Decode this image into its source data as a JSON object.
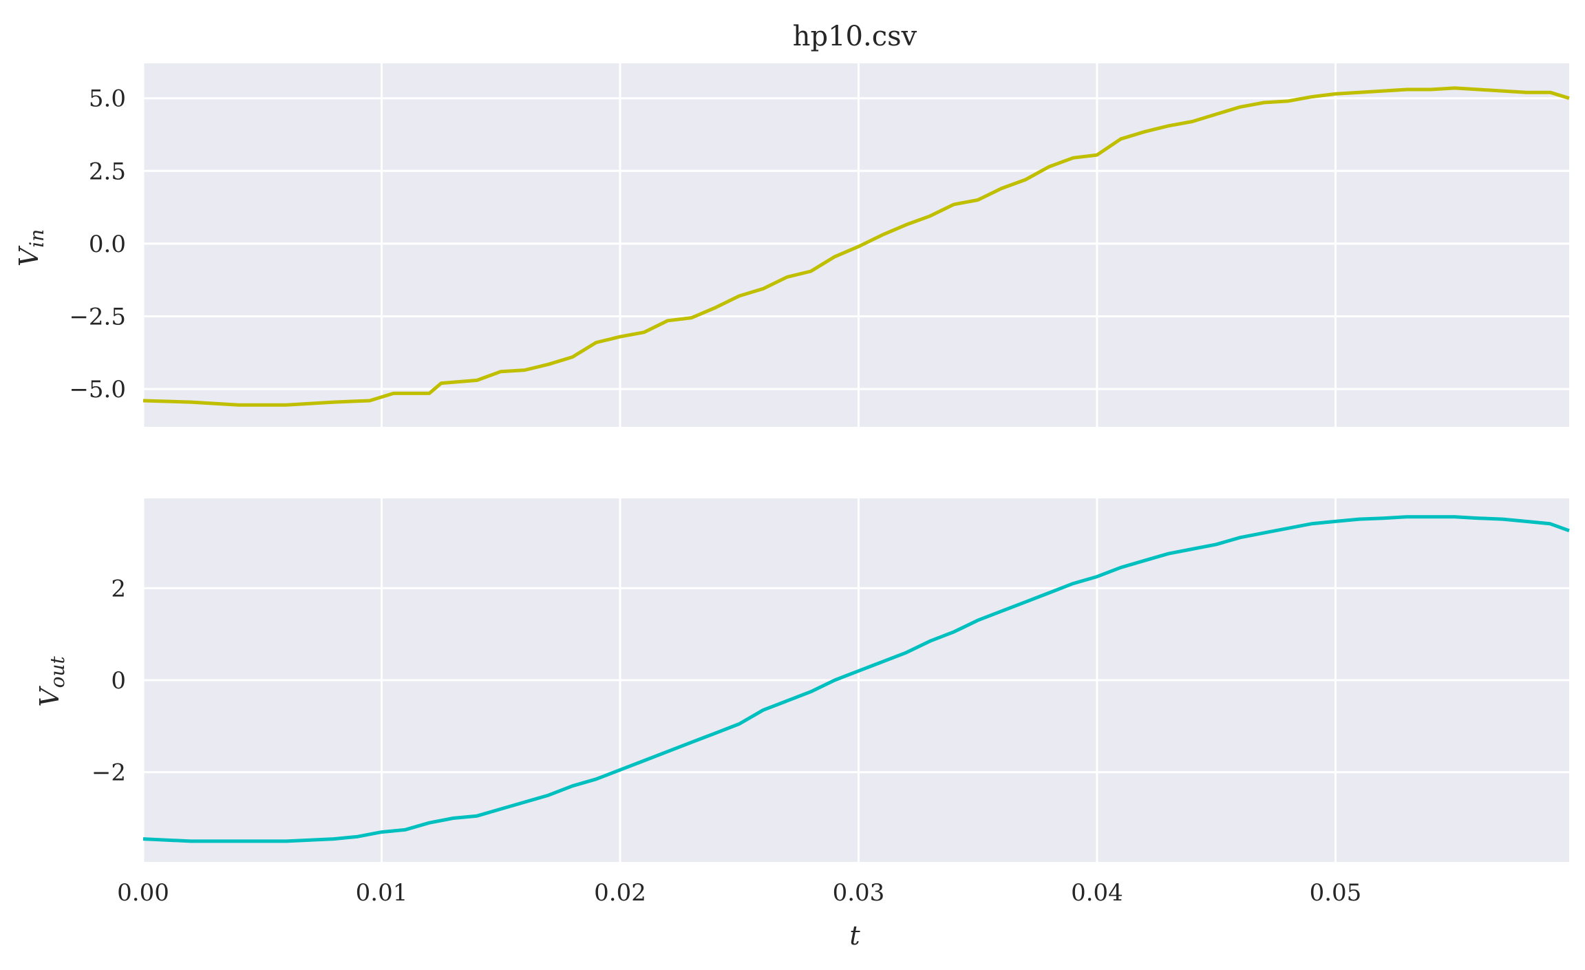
{
  "title": "hp10.csv",
  "colors": {
    "background": "#eaeaf2",
    "grid": "#ffffff",
    "vin_line": "#bfbf00",
    "vout_line": "#00bfbf"
  },
  "axes": {
    "xlabel": "t",
    "top_ylabel": "V_in",
    "bottom_ylabel": "V_out",
    "x_tick_labels": [
      "0.00",
      "0.01",
      "0.02",
      "0.03",
      "0.04",
      "0.05"
    ],
    "top_y_tick_labels": [
      "5.0",
      "2.5",
      "0.0",
      "−2.5",
      "−5.0"
    ],
    "bottom_y_tick_labels": [
      "2",
      "0",
      "−2"
    ]
  },
  "chart_data": [
    {
      "type": "line",
      "title": "hp10.csv",
      "xlabel": "",
      "ylabel": "V_in",
      "xlim": [
        0,
        0.0598
      ],
      "ylim": [
        -6.3,
        6.2
      ],
      "x_ticks": [
        0,
        0.01,
        0.02,
        0.03,
        0.04,
        0.05
      ],
      "y_ticks": [
        5.0,
        2.5,
        0.0,
        -2.5,
        -5.0
      ],
      "grid": true,
      "series": [
        {
          "x": [
            0,
            0.002,
            0.004,
            0.006,
            0.008,
            0.0095,
            0.0105,
            0.012,
            0.0125,
            0.014,
            0.015,
            0.016,
            0.017,
            0.018,
            0.019,
            0.02,
            0.021,
            0.022,
            0.023,
            0.024,
            0.025,
            0.026,
            0.027,
            0.028,
            0.029,
            0.03,
            0.031,
            0.032,
            0.033,
            0.034,
            0.035,
            0.036,
            0.037,
            0.038,
            0.039,
            0.04,
            0.041,
            0.042,
            0.043,
            0.044,
            0.045,
            0.046,
            0.047,
            0.048,
            0.049,
            0.05,
            0.051,
            0.052,
            0.053,
            0.054,
            0.055,
            0.056,
            0.057,
            0.058,
            0.059,
            0.0598
          ],
          "y": [
            -5.4,
            -5.45,
            -5.55,
            -5.55,
            -5.45,
            -5.4,
            -5.15,
            -5.15,
            -4.8,
            -4.7,
            -4.4,
            -4.35,
            -4.15,
            -3.9,
            -3.4,
            -3.2,
            -3.05,
            -2.65,
            -2.55,
            -2.2,
            -1.8,
            -1.55,
            -1.15,
            -0.95,
            -0.45,
            -0.1,
            0.3,
            0.65,
            0.95,
            1.35,
            1.5,
            1.9,
            2.2,
            2.65,
            2.95,
            3.05,
            3.6,
            3.85,
            4.05,
            4.2,
            4.45,
            4.7,
            4.85,
            4.9,
            5.05,
            5.15,
            5.2,
            5.25,
            5.3,
            5.3,
            5.35,
            5.3,
            5.25,
            5.2,
            5.2,
            5.0
          ]
        }
      ]
    },
    {
      "type": "line",
      "xlabel": "t",
      "ylabel": "V_out",
      "xlim": [
        0,
        0.0598
      ],
      "ylim": [
        -3.95,
        3.95
      ],
      "x_ticks": [
        0,
        0.01,
        0.02,
        0.03,
        0.04,
        0.05
      ],
      "y_ticks": [
        2,
        0,
        -2
      ],
      "grid": true,
      "series": [
        {
          "x": [
            0,
            0.002,
            0.004,
            0.006,
            0.008,
            0.009,
            0.01,
            0.011,
            0.012,
            0.013,
            0.014,
            0.015,
            0.016,
            0.017,
            0.018,
            0.019,
            0.02,
            0.021,
            0.022,
            0.023,
            0.024,
            0.025,
            0.026,
            0.027,
            0.028,
            0.029,
            0.03,
            0.031,
            0.032,
            0.033,
            0.034,
            0.035,
            0.036,
            0.037,
            0.038,
            0.039,
            0.04,
            0.041,
            0.042,
            0.043,
            0.044,
            0.045,
            0.046,
            0.047,
            0.048,
            0.049,
            0.05,
            0.051,
            0.052,
            0.053,
            0.054,
            0.055,
            0.056,
            0.057,
            0.058,
            0.059,
            0.0598
          ],
          "y": [
            -3.45,
            -3.5,
            -3.5,
            -3.5,
            -3.45,
            -3.4,
            -3.3,
            -3.25,
            -3.1,
            -3.0,
            -2.95,
            -2.8,
            -2.65,
            -2.5,
            -2.3,
            -2.15,
            -1.95,
            -1.75,
            -1.55,
            -1.35,
            -1.15,
            -0.95,
            -0.65,
            -0.45,
            -0.25,
            0.0,
            0.2,
            0.4,
            0.6,
            0.85,
            1.05,
            1.3,
            1.5,
            1.7,
            1.9,
            2.1,
            2.25,
            2.45,
            2.6,
            2.75,
            2.85,
            2.95,
            3.1,
            3.2,
            3.3,
            3.4,
            3.45,
            3.5,
            3.52,
            3.55,
            3.55,
            3.55,
            3.52,
            3.5,
            3.45,
            3.4,
            3.25
          ]
        }
      ]
    }
  ]
}
